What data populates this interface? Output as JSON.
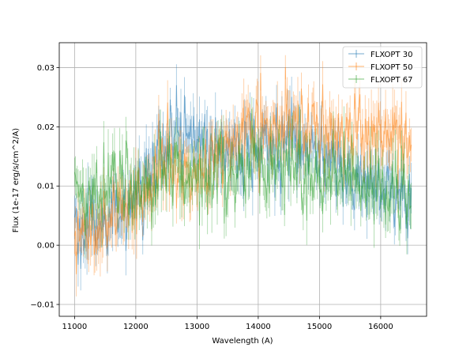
{
  "chart_data": {
    "type": "line",
    "title": "",
    "xlabel": "Wavelength (A)",
    "ylabel": "Flux (1e-17 erg/s/cm^2/A)",
    "xlim": [
      10750,
      16750
    ],
    "ylim": [
      -0.012,
      0.0342
    ],
    "xticks": [
      11000,
      12000,
      13000,
      14000,
      15000,
      16000
    ],
    "yticks": [
      -0.01,
      0.0,
      0.01,
      0.02,
      0.03
    ],
    "xtick_labels": [
      "11000",
      "12000",
      "13000",
      "14000",
      "15000",
      "16000"
    ],
    "ytick_labels": [
      "−0.01",
      "0.00",
      "0.01",
      "0.02",
      "0.03"
    ],
    "grid": true,
    "legend_position": "upper-right",
    "noise_note": "dense noisy spectra with vertical error bars; values below are smoothed trend anchors",
    "series": [
      {
        "name": "FLXOPT 30",
        "color": "#1f77b4",
        "x": [
          11000,
          11250,
          11500,
          11750,
          12000,
          12250,
          12500,
          12750,
          13000,
          13250,
          13500,
          13750,
          14000,
          14250,
          14500,
          14750,
          15000,
          15250,
          15500,
          15750,
          16000,
          16250,
          16500
        ],
        "y": [
          0.004,
          0.002,
          0.003,
          0.007,
          0.009,
          0.012,
          0.016,
          0.019,
          0.018,
          0.016,
          0.015,
          0.015,
          0.016,
          0.016,
          0.019,
          0.017,
          0.016,
          0.013,
          0.012,
          0.01,
          0.009,
          0.008,
          0.008
        ]
      },
      {
        "name": "FLXOPT 50",
        "color": "#ff7f0e",
        "x": [
          11000,
          11250,
          11500,
          11750,
          12000,
          12250,
          12500,
          12750,
          13000,
          13250,
          13500,
          13750,
          14000,
          14250,
          14500,
          14750,
          15000,
          15250,
          15500,
          15750,
          16000,
          16250,
          16500
        ],
        "y": [
          0.005,
          0.003,
          0.004,
          0.006,
          0.008,
          0.011,
          0.013,
          0.013,
          0.012,
          0.014,
          0.016,
          0.019,
          0.02,
          0.019,
          0.021,
          0.02,
          0.02,
          0.019,
          0.019,
          0.018,
          0.019,
          0.019,
          0.018
        ]
      },
      {
        "name": "FLXOPT 67",
        "color": "#2ca02c",
        "x": [
          11000,
          11250,
          11500,
          11750,
          12000,
          12250,
          12500,
          12750,
          13000,
          13250,
          13500,
          13750,
          14000,
          14250,
          14500,
          14750,
          15000,
          15250,
          15500,
          15750,
          16000,
          16250,
          16500
        ],
        "y": [
          0.009,
          0.008,
          0.01,
          0.01,
          0.01,
          0.011,
          0.013,
          0.013,
          0.012,
          0.012,
          0.012,
          0.012,
          0.013,
          0.012,
          0.014,
          0.012,
          0.011,
          0.011,
          0.012,
          0.01,
          0.01,
          0.009,
          0.009
        ]
      }
    ]
  }
}
